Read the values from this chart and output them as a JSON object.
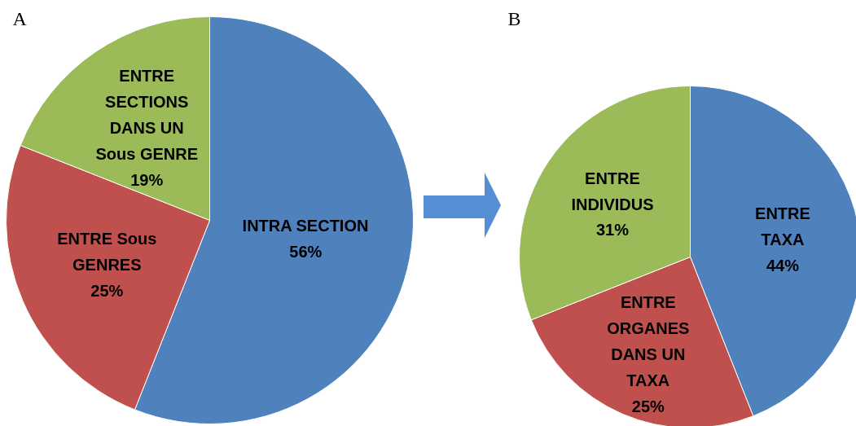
{
  "chart_data": [
    {
      "type": "pie",
      "title": "A",
      "categories": [
        "INTRA SECTION",
        "ENTRE Sous GENRES",
        "ENTRE SECTIONS DANS UN Sous GENRE"
      ],
      "values": [
        56,
        25,
        19
      ],
      "value_labels": [
        "56%",
        "25%",
        "19%"
      ],
      "colors": [
        "#4f81bd",
        "#c0504d",
        "#9bbb59"
      ]
    },
    {
      "type": "pie",
      "title": "B",
      "categories": [
        "ENTRE TAXA",
        "ENTRE ORGANES DANS UN TAXA",
        "ENTRE INDIVIDUS"
      ],
      "values": [
        44,
        25,
        31
      ],
      "value_labels": [
        "44%",
        "25%",
        "31%"
      ],
      "colors": [
        "#4f81bd",
        "#c0504d",
        "#9bbb59"
      ]
    }
  ]
}
